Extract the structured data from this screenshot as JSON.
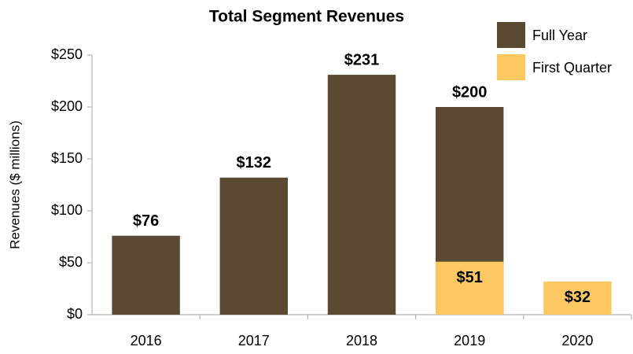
{
  "chart_data": {
    "type": "bar",
    "title": "Total Segment Revenues",
    "ylabel": "Revenues ($ millions)",
    "categories": [
      "2016",
      "2017",
      "2018",
      "2019",
      "2020"
    ],
    "series": [
      {
        "name": "Full Year",
        "color": "#5a4a31",
        "values": [
          76,
          132,
          231,
          200,
          null
        ],
        "value_labels": [
          "$76",
          "$132",
          "$231",
          "$200",
          null
        ]
      },
      {
        "name": "First Quarter",
        "color": "#fcc862",
        "values": [
          null,
          null,
          null,
          51,
          32
        ],
        "value_labels": [
          null,
          null,
          null,
          "$51",
          "$32"
        ]
      }
    ],
    "ylim": [
      0,
      250
    ],
    "yticks": [
      {
        "value": 0,
        "label": "$0"
      },
      {
        "value": 50,
        "label": "$50"
      },
      {
        "value": 100,
        "label": "$100"
      },
      {
        "value": 150,
        "label": "$150"
      },
      {
        "value": 200,
        "label": "$200"
      },
      {
        "value": 250,
        "label": "$250"
      }
    ],
    "overlap": true,
    "grid": false,
    "legend": "upper right"
  }
}
